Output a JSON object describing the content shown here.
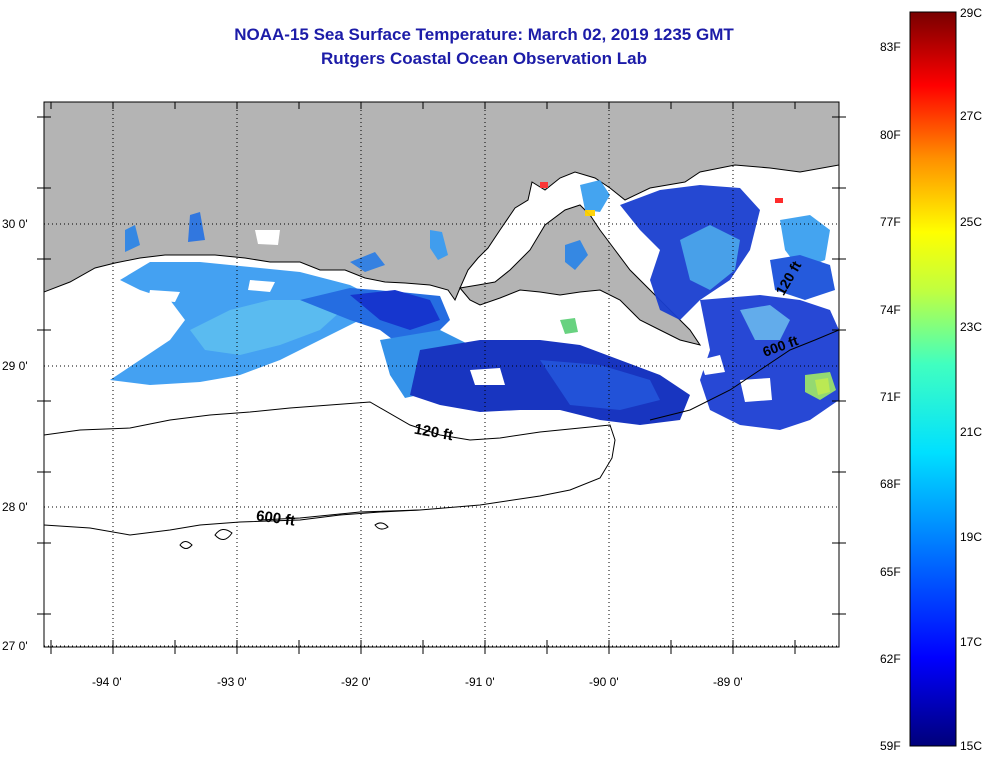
{
  "title": {
    "line1": "NOAA-15 Sea Surface Temperature:  March 02, 2019 1235 GMT",
    "line2": "Rutgers Coastal Ocean Observation Lab"
  },
  "axes": {
    "longitude_labels": [
      "-94 0'",
      "-93 0'",
      "-92 0'",
      "-91 0'",
      "-90 0'",
      "-89 0'"
    ],
    "latitude_labels": [
      "30 0'",
      "29 0'",
      "28 0'",
      "27 0'"
    ]
  },
  "contours": {
    "label_120": "120 ft",
    "label_600": "600 ft"
  },
  "colorbar": {
    "fahrenheit": [
      "83F",
      "80F",
      "77F",
      "74F",
      "71F",
      "68F",
      "65F",
      "62F",
      "59F"
    ],
    "celsius": [
      "29C",
      "27C",
      "25C",
      "23C",
      "21C",
      "19C",
      "17C",
      "15C"
    ],
    "range_c": [
      15,
      29
    ],
    "colors": [
      "#00007a",
      "#0000ff",
      "#0080ff",
      "#00e0ff",
      "#40ffc0",
      "#c0ff40",
      "#ffff00",
      "#ff9000",
      "#ff0000",
      "#780000"
    ]
  },
  "colors": {
    "land": "#b4b4b4",
    "title": "#1c1ca8"
  }
}
